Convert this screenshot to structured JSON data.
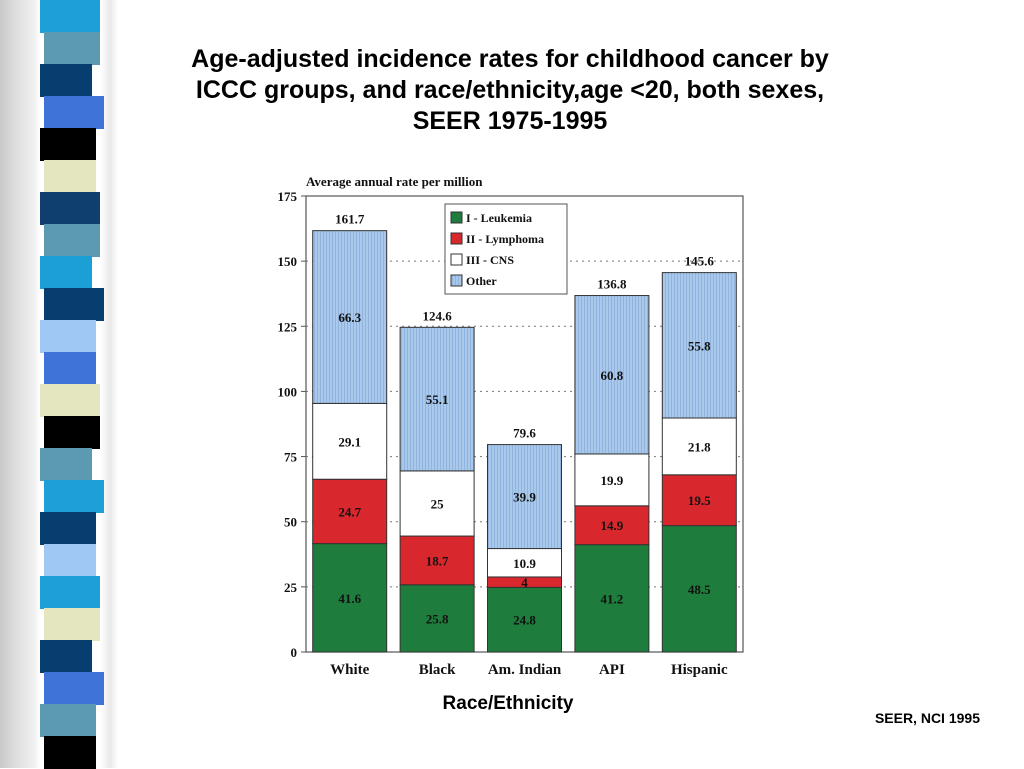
{
  "slide": {
    "title": "Age-adjusted incidence rates for childhood cancer by\nICCC groups, and race/ethnicity,age <20, both sexes,\nSEER 1975-1995",
    "source": "SEER, NCI 1995"
  },
  "decor": {
    "stripes": [
      "#1e9fd6",
      "#5b9ab0",
      "#063e6f",
      "#3f73d8",
      "#000000",
      "#e4e6c0",
      "#0e3f6e",
      "#5b9ab0",
      "#1b9fd4",
      "#063e6f",
      "#9fc9f4",
      "#3f73d8",
      "#e4e6c0",
      "#000000",
      "#5b9ab0",
      "#1e9fd6",
      "#063e6f",
      "#9fc9f4",
      "#1e9fd6",
      "#e4e6c0",
      "#063e6f",
      "#3f73d8",
      "#5b9ab0",
      "#000000"
    ]
  },
  "chart_data": {
    "type": "bar",
    "stacked": true,
    "title": "Average annual rate per million",
    "xlabel": "Race/Ethnicity",
    "ylabel": "",
    "ylim": [
      0,
      175
    ],
    "yticks": [
      0,
      25,
      50,
      75,
      100,
      125,
      150,
      175
    ],
    "categories": [
      "White",
      "Black",
      "Am. Indian",
      "API",
      "Hispanic"
    ],
    "series": [
      {
        "name": "I - Leukemia",
        "color": "#1e7d3c",
        "values": [
          41.6,
          25.8,
          24.8,
          41.2,
          48.5
        ],
        "labels": [
          "41.6",
          "25.8",
          "24.8",
          "41.2",
          "48.5"
        ]
      },
      {
        "name": "II - Lymphoma",
        "color": "#d8272d",
        "values": [
          24.7,
          18.7,
          4,
          14.9,
          19.5
        ],
        "labels": [
          "24.7",
          "18.7",
          "4",
          "14.9",
          "19.5"
        ]
      },
      {
        "name": "III - CNS",
        "color": "#ffffff",
        "values": [
          29.1,
          25,
          10.9,
          19.9,
          21.8
        ],
        "labels": [
          "29.1",
          "25",
          "10.9",
          "19.9",
          "21.8"
        ]
      },
      {
        "name": "Other",
        "color": "#a9c8ea",
        "values": [
          66.3,
          55.1,
          39.9,
          60.8,
          55.8
        ],
        "labels": [
          "66.3",
          "55.1",
          "39.9",
          "60.8",
          "55.8"
        ]
      }
    ],
    "totals": [
      "161.7",
      "124.6",
      "79.6",
      "136.8",
      "145.6"
    ],
    "legend_position": "top-center",
    "grid": "dotted-horizontal"
  }
}
